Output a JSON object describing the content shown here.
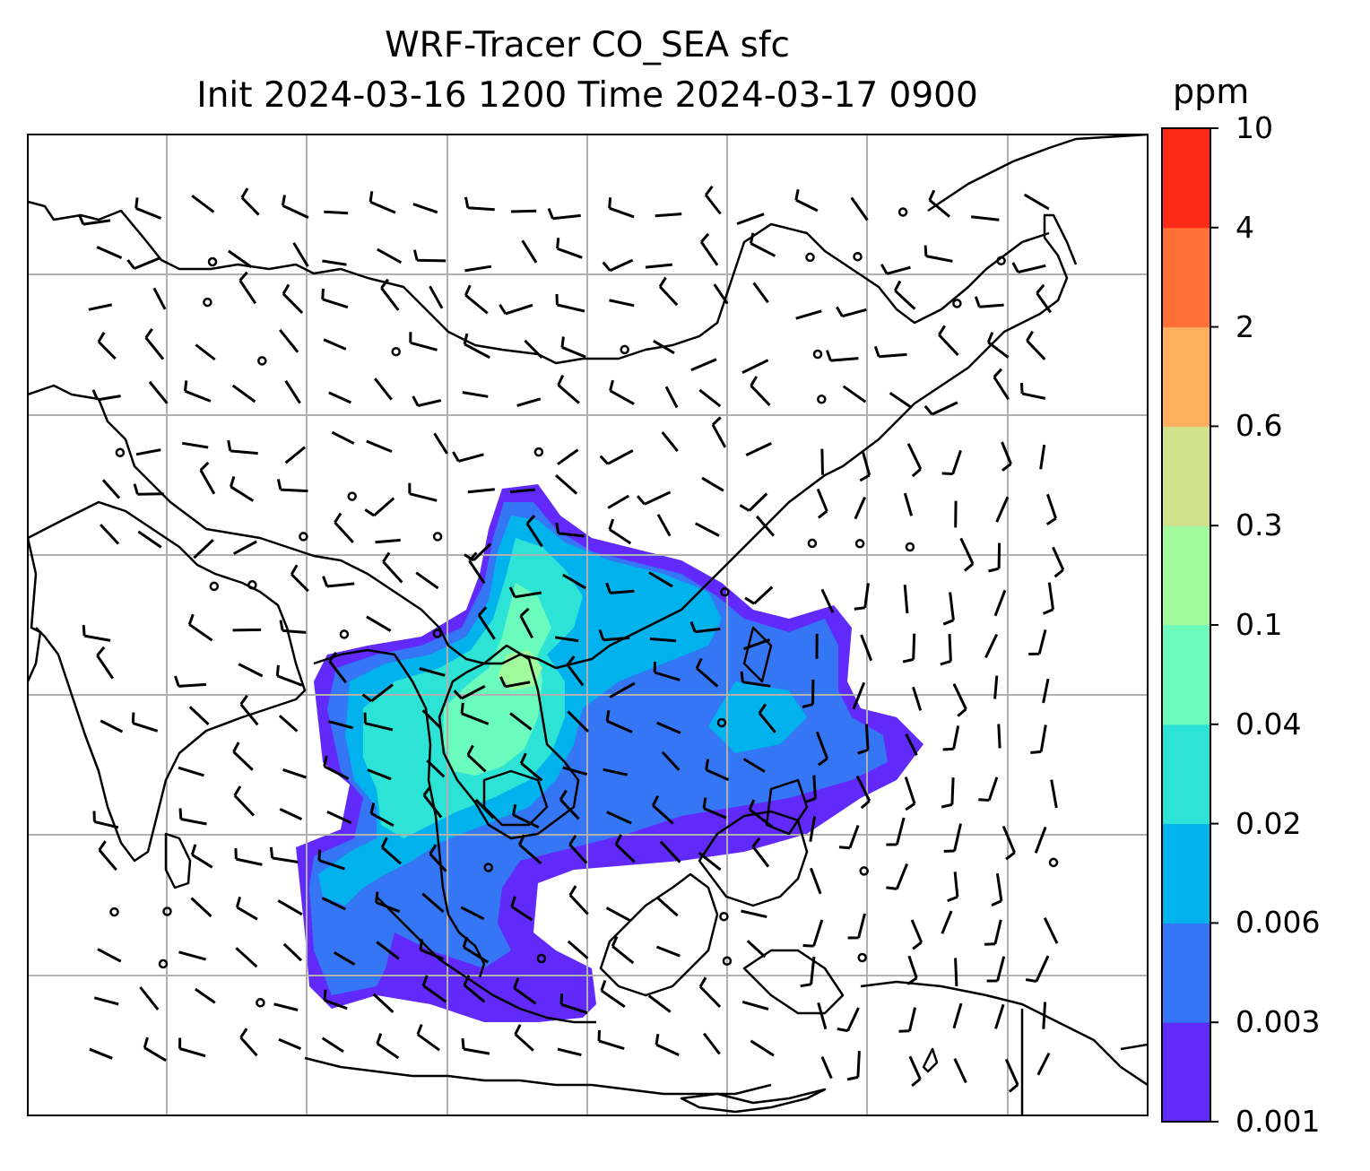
{
  "title": {
    "line1": "WRF-Tracer CO_SEA sfc",
    "line2": "Init 2024-03-16 1200 Time 2024-03-17 0900"
  },
  "colorbar": {
    "unit": "ppm",
    "levels": [
      "0.001",
      "0.003",
      "0.006",
      "0.02",
      "0.04",
      "0.1",
      "0.3",
      "0.6",
      "2",
      "4",
      "10"
    ],
    "colors": [
      "#6229fb",
      "#3576f4",
      "#02b2ec",
      "#2ce3d5",
      "#6afbbd",
      "#a1fa9b",
      "#d1e18c",
      "#fdaf5f",
      "#ff7039",
      "#ff2b17"
    ]
  },
  "map": {
    "gridlines": "on",
    "field": "CO tracer surface concentration",
    "overlay": "wind barbs"
  }
}
